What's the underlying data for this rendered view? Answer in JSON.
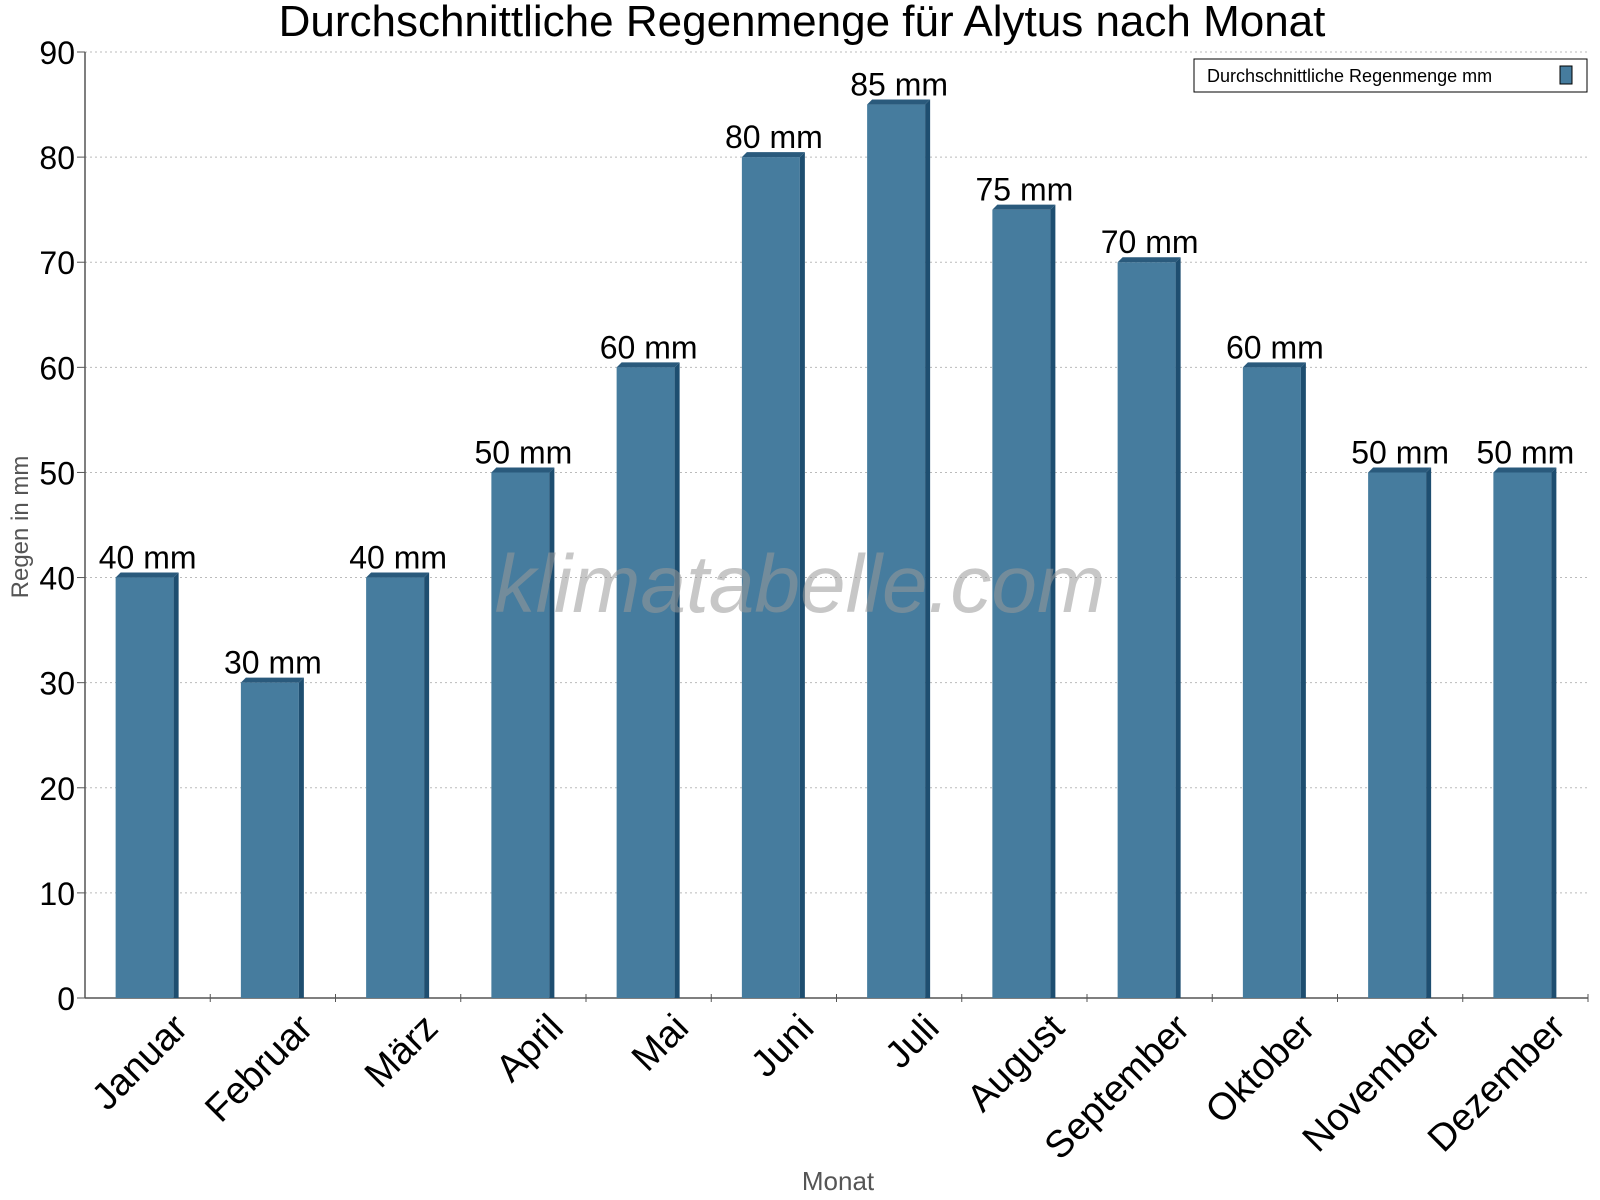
{
  "chart_data": {
    "type": "bar",
    "title": "Durchschnittliche Regenmenge für Alytus nach Monat",
    "xlabel": "Monat",
    "ylabel": "Regen in mm",
    "ylim": [
      0,
      90
    ],
    "yticks": [
      "0",
      "10",
      "20",
      "30",
      "40",
      "50",
      "60",
      "70",
      "80",
      "90"
    ],
    "grid": "horizontal dotted",
    "legend": {
      "placement": "top-right",
      "entries": [
        "Durchschnittliche Regenmenge mm"
      ]
    },
    "categories": [
      "Januar",
      "Februar",
      "März",
      "April",
      "Mai",
      "Juni",
      "Juli",
      "August",
      "September",
      "Oktober",
      "November",
      "Dezember"
    ],
    "series": [
      {
        "name": "Durchschnittliche Regenmenge mm",
        "values": [
          40,
          30,
          40,
          50,
          60,
          80,
          85,
          75,
          70,
          60,
          50,
          50
        ],
        "labels": [
          "40 mm",
          "30 mm",
          "40 mm",
          "50 mm",
          "60 mm",
          "80 mm",
          "85 mm",
          "75 mm",
          "70 mm",
          "60 mm",
          "50 mm",
          "50 mm"
        ]
      }
    ],
    "watermark": "klimatabelle.com",
    "colors": {
      "bar": "#467c9e",
      "bar_side": "#1e4e70",
      "bar_top": "#2a5a7c",
      "grid": "#bbbbbb",
      "axis": "#555555"
    }
  }
}
